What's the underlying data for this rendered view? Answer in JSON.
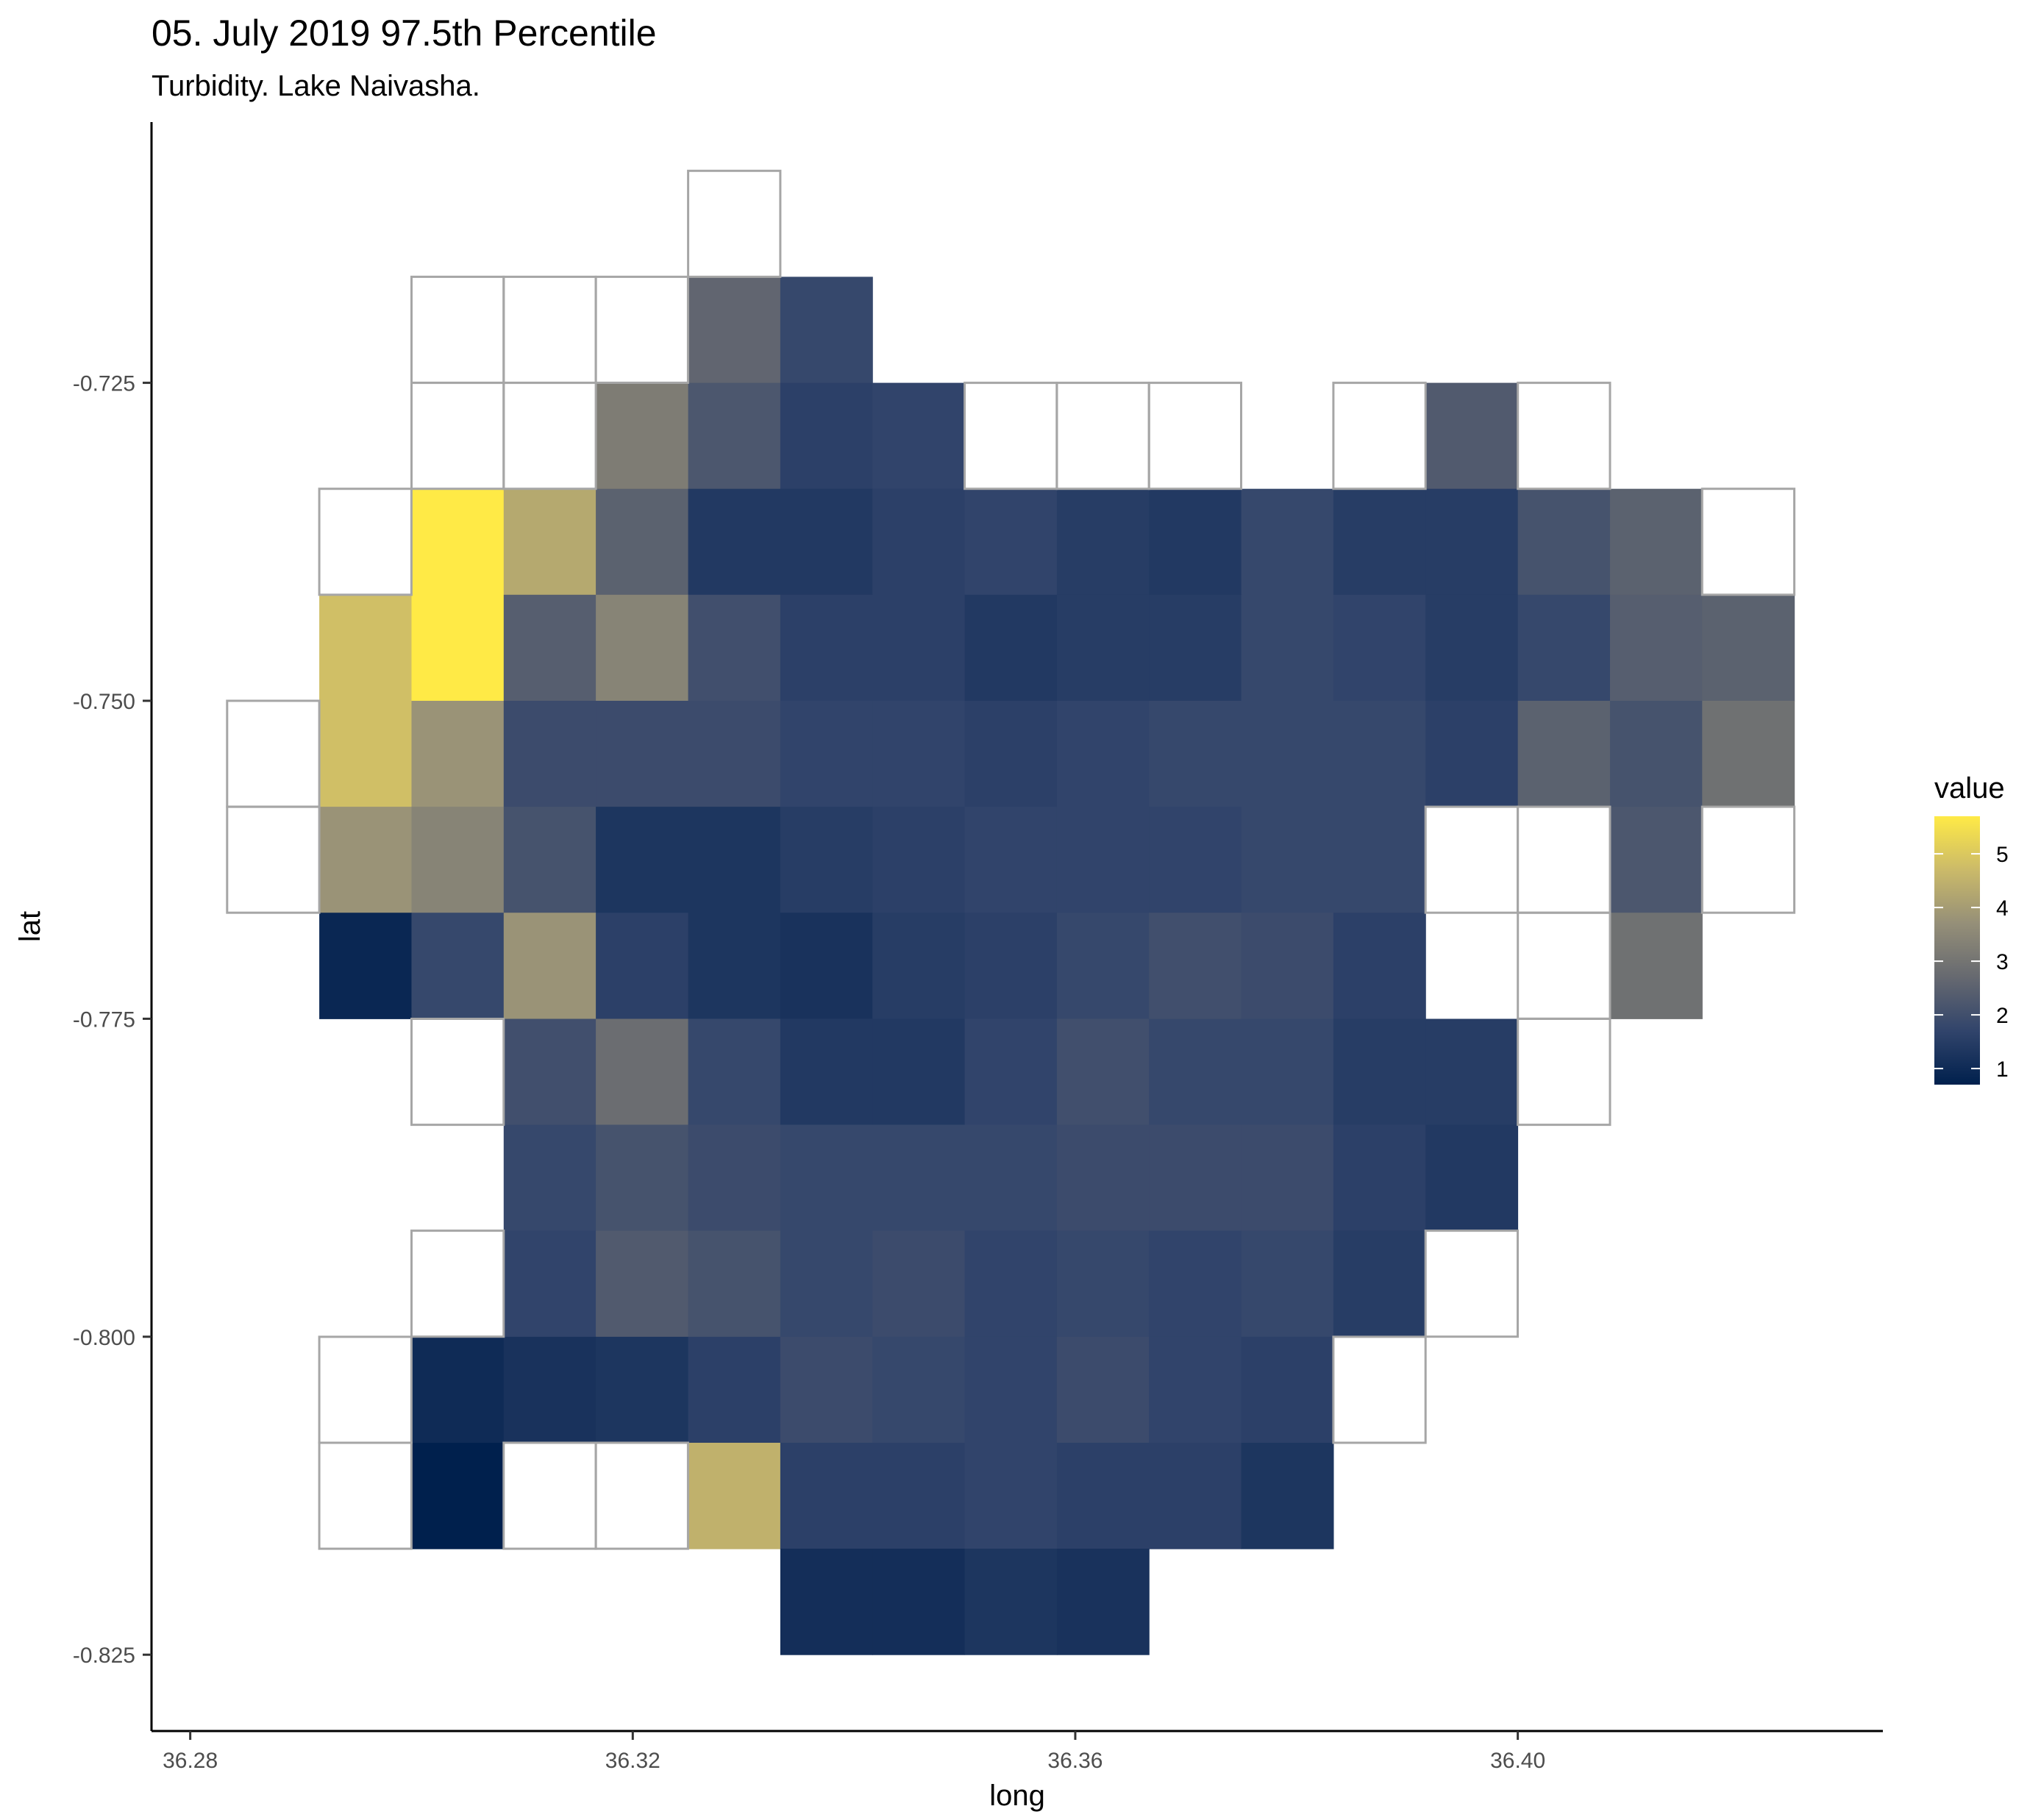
{
  "chart_data": {
    "type": "heatmap",
    "title": "05. July 2019 97.5th Percentile",
    "subtitle": "Turbidity. Lake Naivasha.",
    "xlabel": "long",
    "ylabel": "lat",
    "xlim": [
      36.2765,
      36.433
    ],
    "ylim": [
      -0.831,
      -0.7045
    ],
    "x_ticks": [
      36.28,
      36.32,
      36.36,
      36.4
    ],
    "x_tick_labels": [
      "36.28",
      "36.32",
      "36.36",
      "36.40"
    ],
    "y_ticks": [
      -0.725,
      -0.75,
      -0.775,
      -0.8,
      -0.825
    ],
    "y_tick_labels": [
      "-0.725",
      "-0.750",
      "-0.775",
      "-0.800",
      "-0.825"
    ],
    "grid": false,
    "cell_size": {
      "long": 0.008333,
      "lat": 0.008333
    },
    "x_centers": [
      36.2875,
      36.29583,
      36.30417,
      36.3125,
      36.32083,
      36.32917,
      36.3375,
      36.34583,
      36.35417,
      36.3625,
      36.37083,
      36.37917,
      36.3875,
      36.39583,
      36.40417,
      36.4125,
      36.42083
    ],
    "y_centers": [
      -0.7125,
      -0.72083,
      -0.72917,
      -0.7375,
      -0.74583,
      -0.75417,
      -0.7625,
      -0.77083,
      -0.77917,
      -0.7875,
      -0.79583,
      -0.80417,
      -0.8125,
      -0.82083
    ],
    "values": [
      [
        null,
        null,
        null,
        null,
        null,
        "NA",
        null,
        null,
        null,
        null,
        null,
        null,
        null,
        null,
        null,
        null,
        null
      ],
      [
        null,
        null,
        "NA",
        "NA",
        "NA",
        2.6,
        1.8,
        null,
        null,
        null,
        null,
        null,
        null,
        null,
        null,
        null,
        null
      ],
      [
        null,
        null,
        "NA",
        "NA",
        3.2,
        2.2,
        1.6,
        1.7,
        "NA",
        "NA",
        "NA",
        null,
        "NA",
        2.3,
        "NA",
        null,
        null
      ],
      [
        null,
        "NA",
        5.7,
        4.3,
        2.5,
        1.4,
        1.4,
        1.6,
        1.7,
        1.5,
        1.4,
        1.8,
        1.5,
        1.5,
        2.1,
        2.5,
        "NA"
      ],
      [
        null,
        4.8,
        5.7,
        2.4,
        3.4,
        2.0,
        1.6,
        1.6,
        1.4,
        1.5,
        1.5,
        1.8,
        1.7,
        1.5,
        1.8,
        2.4,
        2.5
      ],
      [
        "NA",
        4.8,
        3.8,
        1.9,
        1.9,
        1.9,
        1.7,
        1.7,
        1.6,
        1.7,
        1.8,
        1.8,
        1.8,
        1.6,
        2.5,
        2.1,
        2.9
      ],
      [
        "NA",
        3.8,
        3.4,
        2.1,
        1.3,
        1.3,
        1.5,
        1.6,
        1.7,
        1.7,
        1.7,
        1.8,
        1.8,
        "NA",
        "NA",
        2.2,
        "NA"
      ],
      [
        null,
        0.9,
        1.8,
        3.8,
        1.6,
        1.3,
        1.2,
        1.5,
        1.6,
        1.8,
        2.0,
        1.9,
        1.6,
        null,
        "NA",
        2.9,
        null
      ],
      [
        null,
        null,
        "NA",
        2.0,
        2.8,
        1.8,
        1.4,
        1.4,
        1.7,
        2.0,
        1.8,
        1.8,
        1.5,
        1.5,
        "NA",
        null,
        null
      ],
      [
        null,
        null,
        null,
        1.8,
        2.1,
        1.9,
        1.8,
        1.8,
        1.8,
        1.9,
        1.9,
        1.9,
        1.6,
        1.4,
        null,
        null,
        null
      ],
      [
        null,
        null,
        "NA",
        1.7,
        2.3,
        2.1,
        1.8,
        1.9,
        1.7,
        1.8,
        1.7,
        1.8,
        1.5,
        "NA",
        null,
        null,
        null
      ],
      [
        null,
        "NA",
        1.0,
        1.2,
        1.3,
        1.6,
        1.9,
        1.8,
        1.7,
        1.9,
        1.7,
        1.6,
        "NA",
        null,
        null,
        null,
        null
      ],
      [
        null,
        "NA",
        0.7,
        "NA",
        "NA",
        4.5,
        1.6,
        1.6,
        1.7,
        1.6,
        1.6,
        1.3,
        null,
        null,
        null,
        null,
        null
      ],
      [
        null,
        null,
        null,
        null,
        null,
        null,
        1.1,
        1.1,
        1.3,
        1.2,
        null,
        null,
        null,
        null,
        null,
        null,
        null
      ]
    ],
    "na_outline_color": "#a6a6a6",
    "legend": {
      "title": "value",
      "position": "right",
      "min": 0.7,
      "max": 5.7,
      "ticks": [
        1,
        2,
        3,
        4,
        5
      ],
      "tick_labels": [
        "1",
        "2",
        "3",
        "4",
        "5"
      ],
      "palette": [
        "#00204d",
        "#31446b",
        "#666970",
        "#958f78",
        "#cbba69",
        "#ffea46"
      ]
    }
  }
}
